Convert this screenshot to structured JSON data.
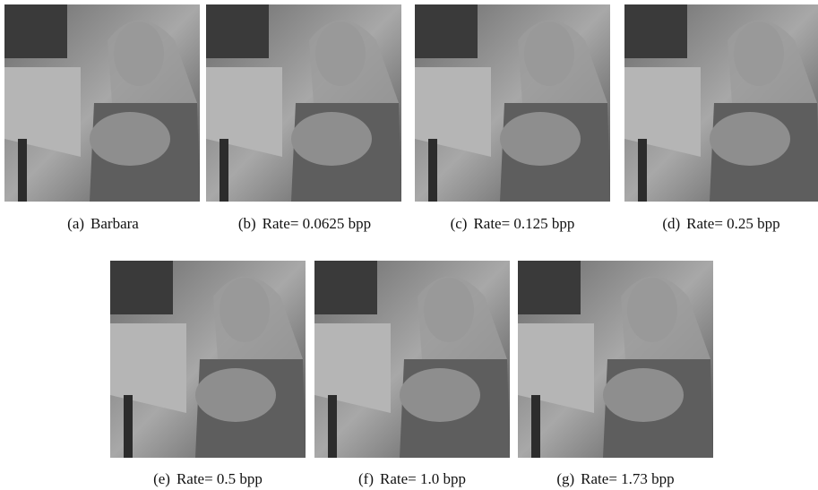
{
  "figure": {
    "panels": [
      {
        "label": "(a)",
        "caption": "Barbara"
      },
      {
        "label": "(b)",
        "caption": "Rate= 0.0625 bpp"
      },
      {
        "label": "(c)",
        "caption": "Rate= 0.125 bpp"
      },
      {
        "label": "(d)",
        "caption": "Rate= 0.25 bpp"
      },
      {
        "label": "(e)",
        "caption": "Rate= 0.5 bpp"
      },
      {
        "label": "(f)",
        "caption": "Rate= 1.0 bpp"
      },
      {
        "label": "(g)",
        "caption": "Rate= 1.73 bpp"
      }
    ]
  }
}
